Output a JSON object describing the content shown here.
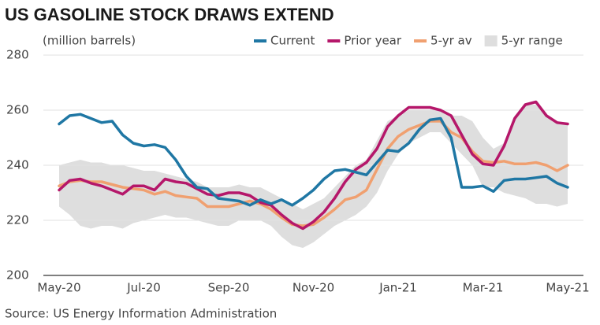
{
  "chart_data": {
    "type": "line",
    "title": "US GASOLINE STOCK DRAWS EXTEND",
    "subtitle": "(million barrels)",
    "source": "Source: US Energy Information Administration",
    "categories": [
      "May-20",
      null,
      null,
      null,
      null,
      null,
      null,
      null,
      "Jul-20",
      null,
      null,
      null,
      null,
      null,
      null,
      null,
      "Sep-20",
      null,
      null,
      null,
      null,
      null,
      null,
      null,
      "Nov-20",
      null,
      null,
      null,
      null,
      null,
      null,
      null,
      "Jan-21",
      null,
      null,
      null,
      null,
      null,
      null,
      null,
      "Mar-21",
      null,
      null,
      null,
      null,
      null,
      null,
      null,
      "May-21"
    ],
    "ylim": [
      200,
      280
    ],
    "yticks": [
      200,
      220,
      240,
      260,
      280
    ],
    "grid": true,
    "series": [
      {
        "name": "Current",
        "color": "#1f77a4",
        "values": [
          255,
          258,
          258.5,
          257,
          255.5,
          256,
          251,
          248,
          247,
          247.5,
          246.5,
          242,
          236,
          232,
          231.5,
          228,
          227.5,
          227,
          225.5,
          227.5,
          226,
          227.5,
          225.5,
          228,
          231,
          235,
          238,
          238.5,
          237.5,
          236.5,
          241,
          245.5,
          245,
          248,
          253,
          256.5,
          257,
          250,
          232,
          232,
          232.5,
          230.5,
          234.5,
          235,
          235,
          235.5,
          236,
          233.5,
          232
        ]
      },
      {
        "name": "Prior year",
        "color": "#b5176a",
        "values": [
          231,
          234.5,
          235,
          233.5,
          232.5,
          231,
          229.5,
          232.5,
          232.5,
          231,
          235,
          234,
          233.5,
          231.5,
          229.5,
          229,
          230,
          230,
          229,
          226.5,
          225.5,
          222,
          219,
          217,
          219.5,
          223,
          228,
          234,
          238.5,
          241,
          246,
          254,
          258,
          261,
          261,
          261,
          260,
          258,
          251,
          244,
          240.5,
          240,
          247,
          257,
          262,
          263,
          258,
          255.5,
          255
        ]
      },
      {
        "name": "5-yr av",
        "color": "#f0a070",
        "values": [
          232.5,
          234,
          234.5,
          234,
          234,
          233,
          232,
          231.5,
          231,
          229.5,
          230.5,
          229,
          228.5,
          228,
          225,
          225,
          225,
          226,
          227,
          226,
          224,
          221,
          218.5,
          218,
          218.5,
          221,
          224,
          227.5,
          228.5,
          231,
          238.5,
          246,
          250.5,
          253,
          254.5,
          256,
          256,
          252,
          250,
          245,
          241.5,
          241,
          241.5,
          240.5,
          240.5,
          241,
          240,
          238,
          240
        ]
      },
      {
        "name": "5-yr range",
        "color": "#dedede",
        "type": "range",
        "values": [
          240,
          241,
          242,
          241,
          241,
          240,
          240,
          239,
          238,
          238,
          237,
          236,
          235,
          234,
          232,
          232,
          232,
          233,
          232,
          232,
          230,
          228,
          226,
          224,
          226,
          228,
          232,
          236,
          240,
          242,
          249,
          256,
          258,
          260,
          260,
          260,
          260,
          258,
          258,
          256,
          250,
          246,
          248,
          258,
          262,
          262,
          258,
          256,
          255
        ],
        "lower": [
          225,
          222,
          218,
          217,
          218,
          218,
          217,
          219,
          220,
          221,
          222,
          221,
          221,
          220,
          219,
          218,
          218,
          220,
          220,
          220,
          218,
          214,
          211,
          210,
          212,
          215,
          218,
          220,
          222,
          225,
          230,
          238,
          244,
          248,
          250,
          252,
          252,
          248,
          244,
          240,
          232,
          232,
          230,
          229,
          228,
          226,
          226,
          225,
          226
        ]
      }
    ]
  }
}
